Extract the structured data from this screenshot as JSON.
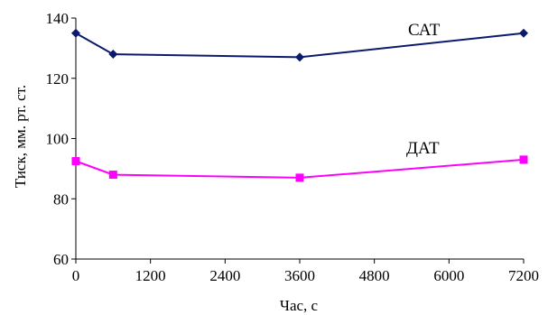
{
  "chart_data": {
    "type": "line",
    "title": "",
    "xlabel": "Час, с",
    "ylabel": "Тиск, мм. рт. ст.",
    "xlim": [
      0,
      7200
    ],
    "ylim": [
      60,
      140
    ],
    "x_ticks": [
      0,
      1200,
      2400,
      3600,
      4800,
      6000,
      7200
    ],
    "y_ticks": [
      60,
      80,
      100,
      120,
      140
    ],
    "grid": false,
    "legend": "inline labels",
    "series": [
      {
        "name": "САТ",
        "color": "#0b1a6e",
        "marker": "diamond",
        "x": [
          0,
          600,
          3600,
          7200
        ],
        "y": [
          135,
          128,
          127,
          135
        ]
      },
      {
        "name": "ДАТ",
        "color": "#ff00ff",
        "marker": "square",
        "x": [
          0,
          600,
          3600,
          7200
        ],
        "y": [
          92.5,
          88,
          87,
          93
        ]
      }
    ]
  }
}
